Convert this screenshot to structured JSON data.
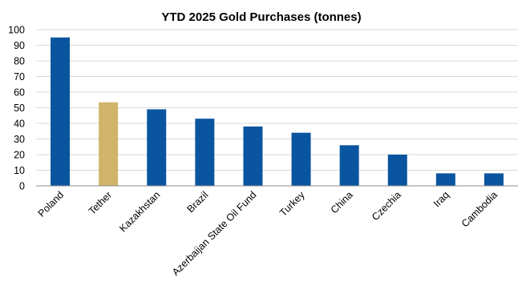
{
  "chart_data": {
    "type": "bar",
    "title": "YTD 2025 Gold Purchases (tonnes)",
    "xlabel": "",
    "ylabel": "",
    "ylim": [
      0,
      100
    ],
    "yticks": [
      "0",
      "10",
      "20",
      "30",
      "40",
      "50",
      "60",
      "70",
      "80",
      "90",
      "100"
    ],
    "grid": true,
    "legend": "none",
    "categories": [
      "Poland",
      "Tether",
      "Kazakhstan",
      "Brazil",
      "Azerbaijan State Oil Fund",
      "Turkey",
      "China",
      "Czechia",
      "Iraq",
      "Cambodia"
    ],
    "values": [
      95,
      53.5,
      49,
      43,
      38,
      34,
      26,
      20,
      8,
      8
    ],
    "bar_colors": [
      "#0a55a0",
      "#cfb46a",
      "#0a55a0",
      "#0a55a0",
      "#0a55a0",
      "#0a55a0",
      "#0a55a0",
      "#0a55a0",
      "#0a55a0",
      "#0a55a0"
    ]
  }
}
